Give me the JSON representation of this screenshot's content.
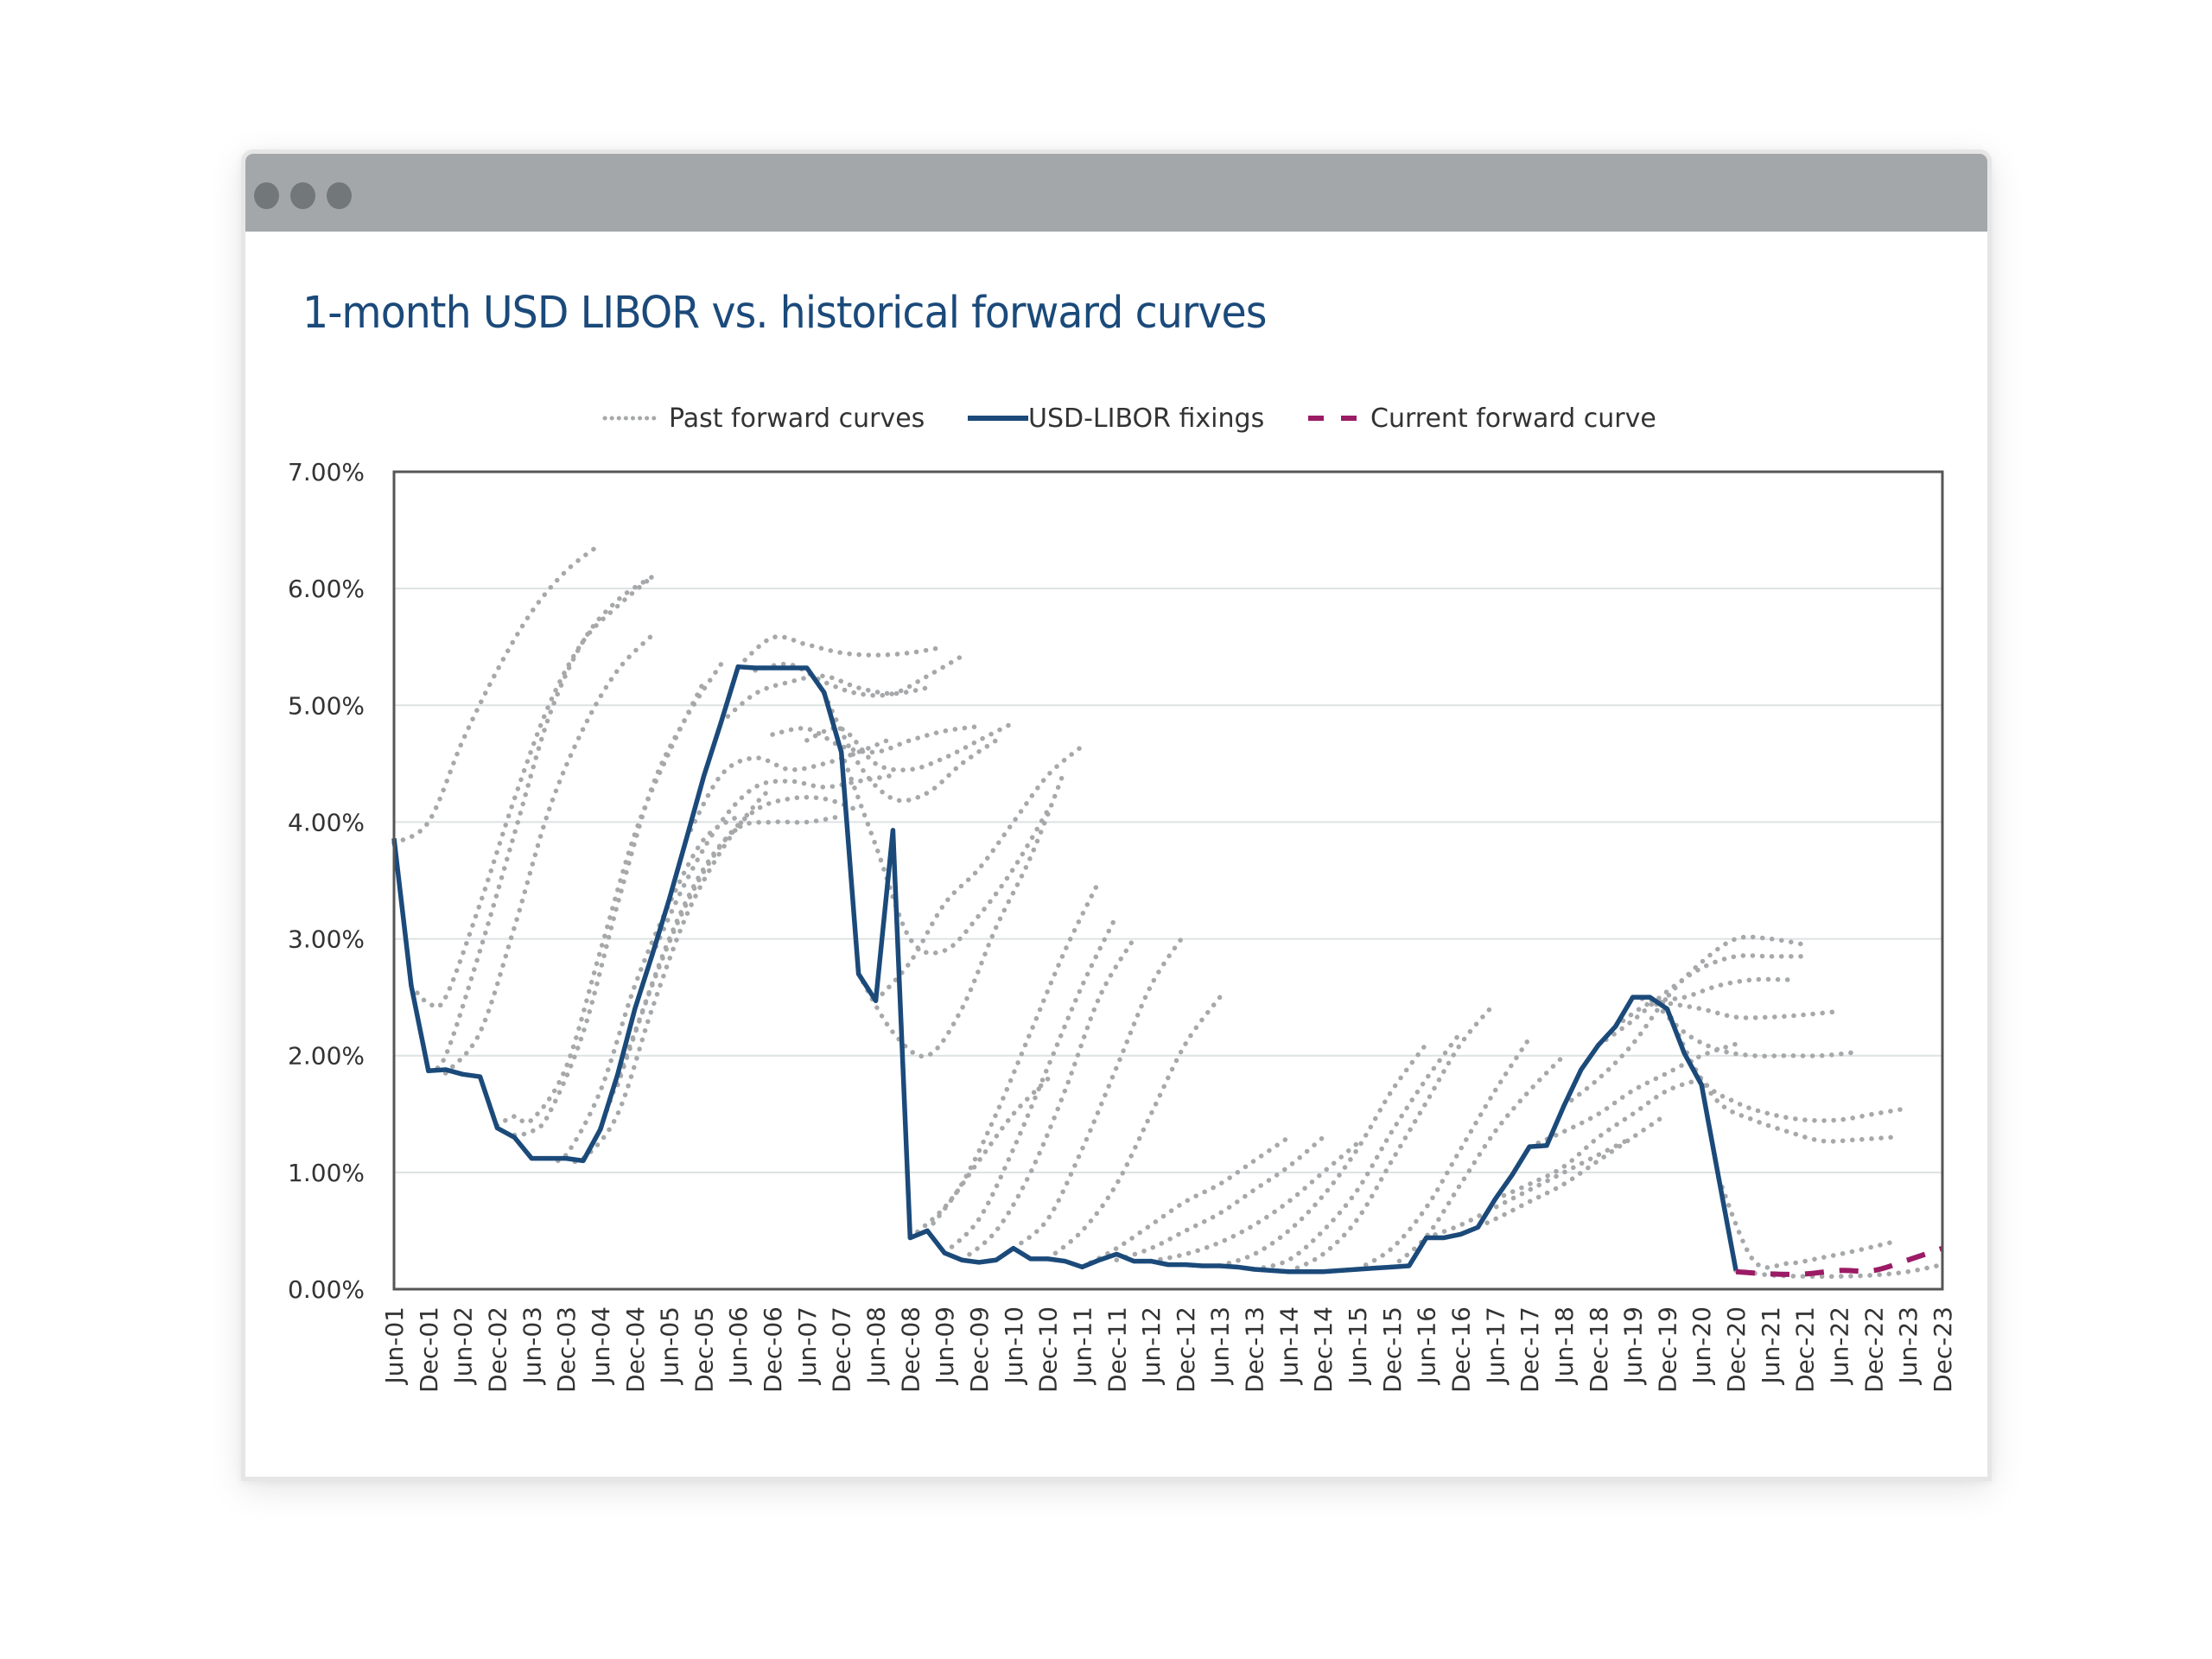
{
  "window": {
    "titlebar_color": "#a4a7aa",
    "dot_color": "#727779",
    "controls": [
      "window-dot",
      "window-dot",
      "window-dot"
    ]
  },
  "chart_data": {
    "type": "line",
    "title": "1-month USD LIBOR vs. historical forward curves",
    "xlabel": "",
    "ylabel": "",
    "ylim": [
      0,
      7
    ],
    "y_ticks": [
      "0.00%",
      "1.00%",
      "2.00%",
      "3.00%",
      "4.00%",
      "5.00%",
      "6.00%",
      "7.00%"
    ],
    "y_tick_values": [
      0,
      1,
      2,
      3,
      4,
      5,
      6,
      7
    ],
    "x_tick_labels": [
      "Jun-01",
      "Dec-01",
      "Jun-02",
      "Dec-02",
      "Jun-03",
      "Dec-03",
      "Jun-04",
      "Dec-04",
      "Jun-05",
      "Dec-05",
      "Jun-06",
      "Dec-06",
      "Jun-07",
      "Dec-07",
      "Jun-08",
      "Dec-08",
      "Jun-09",
      "Dec-09",
      "Jun-10",
      "Dec-10",
      "Jun-11",
      "Dec-11",
      "Jun-12",
      "Dec-12",
      "Jun-13",
      "Dec-13",
      "Jun-14",
      "Dec-14",
      "Jun-15",
      "Dec-15",
      "Jun-16",
      "Dec-16",
      "Jun-17",
      "Dec-17",
      "Jun-18",
      "Dec-18",
      "Jun-19",
      "Dec-19",
      "Jun-20",
      "Dec-20",
      "Jun-21",
      "Dec-21",
      "Jun-22",
      "Dec-22",
      "Jun-23",
      "Dec-23"
    ],
    "x_unit": "quarters since Jun-01",
    "xlim": [
      0,
      90
    ],
    "grid": true,
    "legend_position": "top",
    "legend": [
      {
        "label": "Past forward curves",
        "style": "dotted",
        "color": "#a6a8aa"
      },
      {
        "label": "USD-LIBOR fixings",
        "style": "solid",
        "color": "#1b4a7a"
      },
      {
        "label": "Current forward curve",
        "style": "dashed",
        "color": "#9b1b65"
      }
    ],
    "series": [
      {
        "name": "USD-LIBOR fixings",
        "x": [
          0,
          1,
          2,
          3,
          4,
          5,
          6,
          7,
          8,
          9,
          10,
          11,
          12,
          13,
          14,
          15,
          16,
          17,
          18,
          19,
          20,
          21,
          22,
          23,
          24,
          25,
          26,
          27,
          28,
          29,
          30,
          31,
          32,
          33,
          34,
          35,
          36,
          37,
          38,
          39,
          40,
          41,
          42,
          43,
          44,
          45,
          46,
          47,
          48,
          49,
          50,
          51,
          52,
          53,
          54,
          55,
          56,
          57,
          58,
          59,
          60,
          61,
          62,
          63,
          64,
          65,
          66,
          67,
          68,
          69,
          70,
          71,
          72,
          73,
          74,
          75,
          76,
          77,
          78
        ],
        "values": [
          3.86,
          2.6,
          1.87,
          1.88,
          1.84,
          1.82,
          1.38,
          1.3,
          1.12,
          1.12,
          1.12,
          1.1,
          1.37,
          1.84,
          2.4,
          2.86,
          3.34,
          3.86,
          4.39,
          4.85,
          5.33,
          5.32,
          5.32,
          5.32,
          5.32,
          5.11,
          4.6,
          2.7,
          2.47,
          3.93,
          0.44,
          0.5,
          0.31,
          0.25,
          0.23,
          0.25,
          0.35,
          0.26,
          0.26,
          0.24,
          0.19,
          0.25,
          0.3,
          0.24,
          0.24,
          0.21,
          0.21,
          0.2,
          0.2,
          0.19,
          0.17,
          0.16,
          0.15,
          0.15,
          0.15,
          0.16,
          0.17,
          0.18,
          0.19,
          0.2,
          0.44,
          0.44,
          0.47,
          0.53,
          0.77,
          0.98,
          1.22,
          1.23,
          1.57,
          1.88,
          2.09,
          2.25,
          2.5,
          2.5,
          2.4,
          2.02,
          1.75,
          0.95,
          0.16
        ]
      },
      {
        "name": "Current forward curve",
        "x": [
          78,
          80,
          82,
          84,
          86,
          88,
          90
        ],
        "values": [
          0.15,
          0.13,
          0.13,
          0.16,
          0.16,
          0.25,
          0.35
        ]
      }
    ],
    "past_forward_curves": [
      {
        "x": [
          0,
          2,
          4,
          6,
          8,
          10,
          12
        ],
        "values": [
          3.82,
          4.0,
          4.7,
          5.3,
          5.8,
          6.15,
          6.38
        ]
      },
      {
        "x": [
          1,
          2,
          3,
          5,
          7,
          9,
          11,
          13,
          15
        ],
        "values": [
          2.6,
          2.45,
          2.5,
          3.3,
          4.2,
          5.0,
          5.55,
          5.85,
          6.1
        ]
      },
      {
        "x": [
          2,
          3,
          5,
          7,
          9,
          11,
          13,
          15
        ],
        "values": [
          1.88,
          2.0,
          2.9,
          3.9,
          4.9,
          5.55,
          5.9,
          6.1
        ]
      },
      {
        "x": [
          3,
          5,
          7,
          9,
          11,
          13,
          15
        ],
        "values": [
          1.85,
          2.2,
          3.1,
          4.1,
          4.8,
          5.3,
          5.6
        ]
      },
      {
        "x": [
          6,
          7,
          8,
          10,
          12,
          14,
          16,
          18
        ],
        "values": [
          1.4,
          1.48,
          1.45,
          1.9,
          2.9,
          3.9,
          4.6,
          5.2
        ]
      },
      {
        "x": [
          7,
          8,
          9,
          11,
          13,
          15,
          17,
          19
        ],
        "values": [
          1.32,
          1.35,
          1.5,
          2.2,
          3.3,
          4.3,
          4.9,
          5.35
        ]
      },
      {
        "x": [
          9,
          10,
          12,
          14,
          16,
          18,
          20
        ],
        "values": [
          1.12,
          1.15,
          1.7,
          2.6,
          3.3,
          3.85,
          4.05
        ]
      },
      {
        "x": [
          10,
          11,
          13,
          15,
          17,
          19,
          21,
          22
        ],
        "values": [
          1.12,
          1.12,
          1.5,
          2.4,
          3.2,
          3.75,
          4.15,
          4.3
        ]
      },
      {
        "x": [
          12,
          14,
          16,
          18,
          20,
          22,
          24,
          26
        ],
        "values": [
          1.38,
          2.2,
          3.0,
          3.6,
          3.95,
          4.0,
          4.0,
          4.05
        ]
      },
      {
        "x": [
          13,
          15,
          17,
          19,
          21,
          23,
          25,
          27
        ],
        "values": [
          1.75,
          2.6,
          3.3,
          3.8,
          4.1,
          4.2,
          4.2,
          4.1
        ]
      },
      {
        "x": [
          15,
          17,
          19,
          21,
          23,
          25,
          27,
          29
        ],
        "values": [
          2.86,
          3.5,
          4.0,
          4.3,
          4.35,
          4.3,
          4.35,
          4.4
        ]
      },
      {
        "x": [
          17,
          19,
          21,
          23,
          25,
          27,
          29
        ],
        "values": [
          3.86,
          4.4,
          4.55,
          4.45,
          4.5,
          4.6,
          4.72
        ]
      },
      {
        "x": [
          19,
          21,
          23,
          25,
          27,
          29,
          31
        ],
        "values": [
          4.85,
          5.1,
          5.2,
          5.25,
          5.15,
          5.1,
          5.15
        ]
      },
      {
        "x": [
          20,
          22,
          24,
          26,
          28,
          30,
          32
        ],
        "values": [
          5.33,
          5.58,
          5.52,
          5.45,
          5.43,
          5.45,
          5.5
        ]
      },
      {
        "x": [
          21,
          23,
          25,
          27,
          29,
          31,
          33
        ],
        "values": [
          5.3,
          5.35,
          5.2,
          5.1,
          5.1,
          5.25,
          5.42
        ]
      },
      {
        "x": [
          22,
          24,
          26,
          28,
          30,
          32,
          34
        ],
        "values": [
          4.75,
          4.8,
          4.65,
          4.6,
          4.7,
          4.78,
          4.82
        ]
      },
      {
        "x": [
          24,
          26,
          28,
          30,
          32,
          34,
          36
        ],
        "values": [
          4.7,
          4.8,
          4.5,
          4.45,
          4.55,
          4.7,
          4.85
        ]
      },
      {
        "x": [
          25,
          27,
          29,
          31,
          33,
          35
        ],
        "values": [
          5.1,
          4.5,
          4.2,
          4.25,
          4.5,
          4.7
        ]
      },
      {
        "x": [
          26,
          28,
          30,
          32,
          34,
          36,
          38
        ],
        "values": [
          4.6,
          3.8,
          3.0,
          2.9,
          3.2,
          3.6,
          4.1
        ]
      },
      {
        "x": [
          27,
          29,
          31,
          33,
          35,
          37,
          39
        ],
        "values": [
          2.7,
          2.2,
          2.0,
          2.4,
          3.1,
          3.7,
          4.45
        ]
      },
      {
        "x": [
          28,
          30,
          32,
          34,
          36,
          38,
          40
        ],
        "values": [
          2.47,
          2.8,
          3.3,
          3.6,
          4.0,
          4.4,
          4.65
        ]
      },
      {
        "x": [
          30,
          32,
          34,
          36,
          38
        ],
        "values": [
          0.44,
          0.7,
          1.1,
          1.5,
          1.8
        ]
      },
      {
        "x": [
          31,
          33,
          35,
          37,
          39,
          41
        ],
        "values": [
          0.5,
          0.9,
          1.5,
          2.2,
          2.9,
          3.5
        ]
      },
      {
        "x": [
          32,
          34,
          36,
          38,
          40,
          42
        ],
        "values": [
          0.31,
          0.6,
          1.2,
          1.9,
          2.6,
          3.2
        ]
      },
      {
        "x": [
          33,
          35,
          37,
          39,
          41,
          43
        ],
        "values": [
          0.25,
          0.5,
          1.0,
          1.7,
          2.5,
          3.0
        ]
      },
      {
        "x": [
          36,
          38,
          40,
          42,
          44,
          46
        ],
        "values": [
          0.35,
          0.6,
          1.2,
          1.9,
          2.6,
          3.05
        ]
      },
      {
        "x": [
          38,
          40,
          42,
          44,
          46,
          48
        ],
        "values": [
          0.26,
          0.5,
          0.9,
          1.5,
          2.1,
          2.5
        ]
      },
      {
        "x": [
          40,
          42,
          44,
          46,
          48,
          50,
          52
        ],
        "values": [
          0.19,
          0.35,
          0.55,
          0.75,
          0.9,
          1.1,
          1.3
        ]
      },
      {
        "x": [
          42,
          44,
          46,
          48,
          50,
          52,
          54
        ],
        "values": [
          0.25,
          0.35,
          0.5,
          0.65,
          0.85,
          1.05,
          1.3
        ]
      },
      {
        "x": [
          44,
          46,
          48,
          50,
          52,
          54,
          56
        ],
        "values": [
          0.24,
          0.3,
          0.4,
          0.55,
          0.75,
          1.0,
          1.25
        ]
      },
      {
        "x": [
          48,
          50,
          52,
          54,
          56,
          58,
          60
        ],
        "values": [
          0.2,
          0.3,
          0.5,
          0.8,
          1.2,
          1.7,
          2.1
        ]
      },
      {
        "x": [
          50,
          52,
          54,
          56,
          58,
          60,
          62
        ],
        "values": [
          0.17,
          0.25,
          0.5,
          0.85,
          1.35,
          1.8,
          2.2
        ]
      },
      {
        "x": [
          52,
          54,
          56,
          58,
          60,
          62,
          64
        ],
        "values": [
          0.15,
          0.3,
          0.6,
          1.1,
          1.6,
          2.1,
          2.45
        ]
      },
      {
        "x": [
          56,
          58,
          60,
          62,
          64,
          66
        ],
        "values": [
          0.17,
          0.35,
          0.7,
          1.2,
          1.7,
          2.15
        ]
      },
      {
        "x": [
          58,
          60,
          62,
          64,
          66,
          68
        ],
        "values": [
          0.19,
          0.45,
          0.9,
          1.35,
          1.7,
          2.0
        ]
      },
      {
        "x": [
          60,
          62,
          64,
          66,
          68,
          70,
          72
        ],
        "values": [
          0.44,
          0.55,
          0.7,
          0.85,
          1.0,
          1.15,
          1.3
        ]
      },
      {
        "x": [
          62,
          64,
          66,
          68,
          70,
          72,
          74
        ],
        "values": [
          0.47,
          0.6,
          0.75,
          0.9,
          1.1,
          1.3,
          1.5
        ]
      },
      {
        "x": [
          64,
          66,
          68,
          70,
          72,
          74,
          76
        ],
        "values": [
          0.77,
          0.9,
          1.05,
          1.3,
          1.5,
          1.7,
          1.8
        ]
      },
      {
        "x": [
          66,
          68,
          70,
          72,
          74,
          76,
          78
        ],
        "values": [
          1.22,
          1.35,
          1.5,
          1.7,
          1.85,
          2.0,
          2.1
        ]
      },
      {
        "x": [
          68,
          70,
          72,
          74,
          76,
          78,
          80,
          82
        ],
        "values": [
          1.57,
          1.8,
          2.1,
          2.5,
          2.8,
          3.0,
          3.0,
          2.95
        ]
      },
      {
        "x": [
          70,
          72,
          74,
          76,
          78,
          80,
          82
        ],
        "values": [
          2.09,
          2.3,
          2.55,
          2.75,
          2.85,
          2.85,
          2.85
        ]
      },
      {
        "x": [
          71,
          73,
          75,
          77,
          79,
          81
        ],
        "values": [
          2.25,
          2.45,
          2.5,
          2.6,
          2.65,
          2.65
        ]
      },
      {
        "x": [
          72,
          74,
          76,
          78,
          80,
          82,
          84
        ],
        "values": [
          2.5,
          2.45,
          2.4,
          2.33,
          2.33,
          2.35,
          2.38
        ]
      },
      {
        "x": [
          73,
          75,
          77,
          79,
          81,
          83,
          85
        ],
        "values": [
          2.5,
          2.2,
          2.05,
          2.0,
          2.0,
          2.0,
          2.03
        ]
      },
      {
        "x": [
          74,
          76,
          78,
          80,
          82,
          84,
          86,
          88
        ],
        "values": [
          2.4,
          1.8,
          1.6,
          1.5,
          1.45,
          1.45,
          1.5,
          1.55
        ]
      },
      {
        "x": [
          75,
          77,
          79,
          81,
          83,
          85,
          87
        ],
        "values": [
          2.02,
          1.6,
          1.45,
          1.35,
          1.27,
          1.28,
          1.3
        ]
      },
      {
        "x": [
          77,
          79,
          81,
          83,
          85,
          87
        ],
        "values": [
          0.95,
          0.25,
          0.22,
          0.27,
          0.33,
          0.4
        ]
      },
      {
        "x": [
          78,
          80,
          82,
          84,
          86,
          88,
          90
        ],
        "values": [
          0.16,
          0.12,
          0.11,
          0.11,
          0.12,
          0.15,
          0.21
        ]
      }
    ]
  }
}
